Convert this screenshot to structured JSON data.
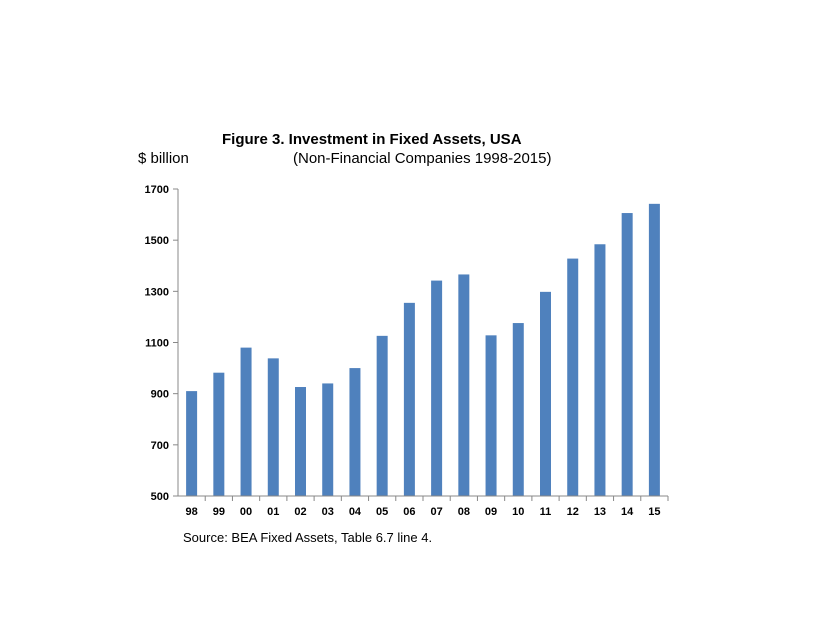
{
  "chart_data": {
    "type": "bar",
    "title": "Figure 3.  Investment in Fixed Assets, USA",
    "subtitle": "(Non-Financial Companies 1998-2015)",
    "ylabel": "$ billion",
    "xlabel": "",
    "categories": [
      "98",
      "99",
      "00",
      "01",
      "02",
      "03",
      "04",
      "05",
      "06",
      "07",
      "08",
      "09",
      "10",
      "11",
      "12",
      "13",
      "14",
      "15"
    ],
    "values": [
      910,
      982,
      1080,
      1038,
      926,
      940,
      1000,
      1126,
      1255,
      1342,
      1366,
      1128,
      1176,
      1298,
      1428,
      1484,
      1606,
      1642
    ],
    "ylim": [
      500,
      1700
    ],
    "yticks": [
      "500",
      "700",
      "900",
      "1100",
      "1300",
      "1500",
      "1700"
    ],
    "bar_color": "#4f81bd",
    "grid": false,
    "source": "Source:  BEA Fixed Assets, Table 6.7 line 4."
  }
}
